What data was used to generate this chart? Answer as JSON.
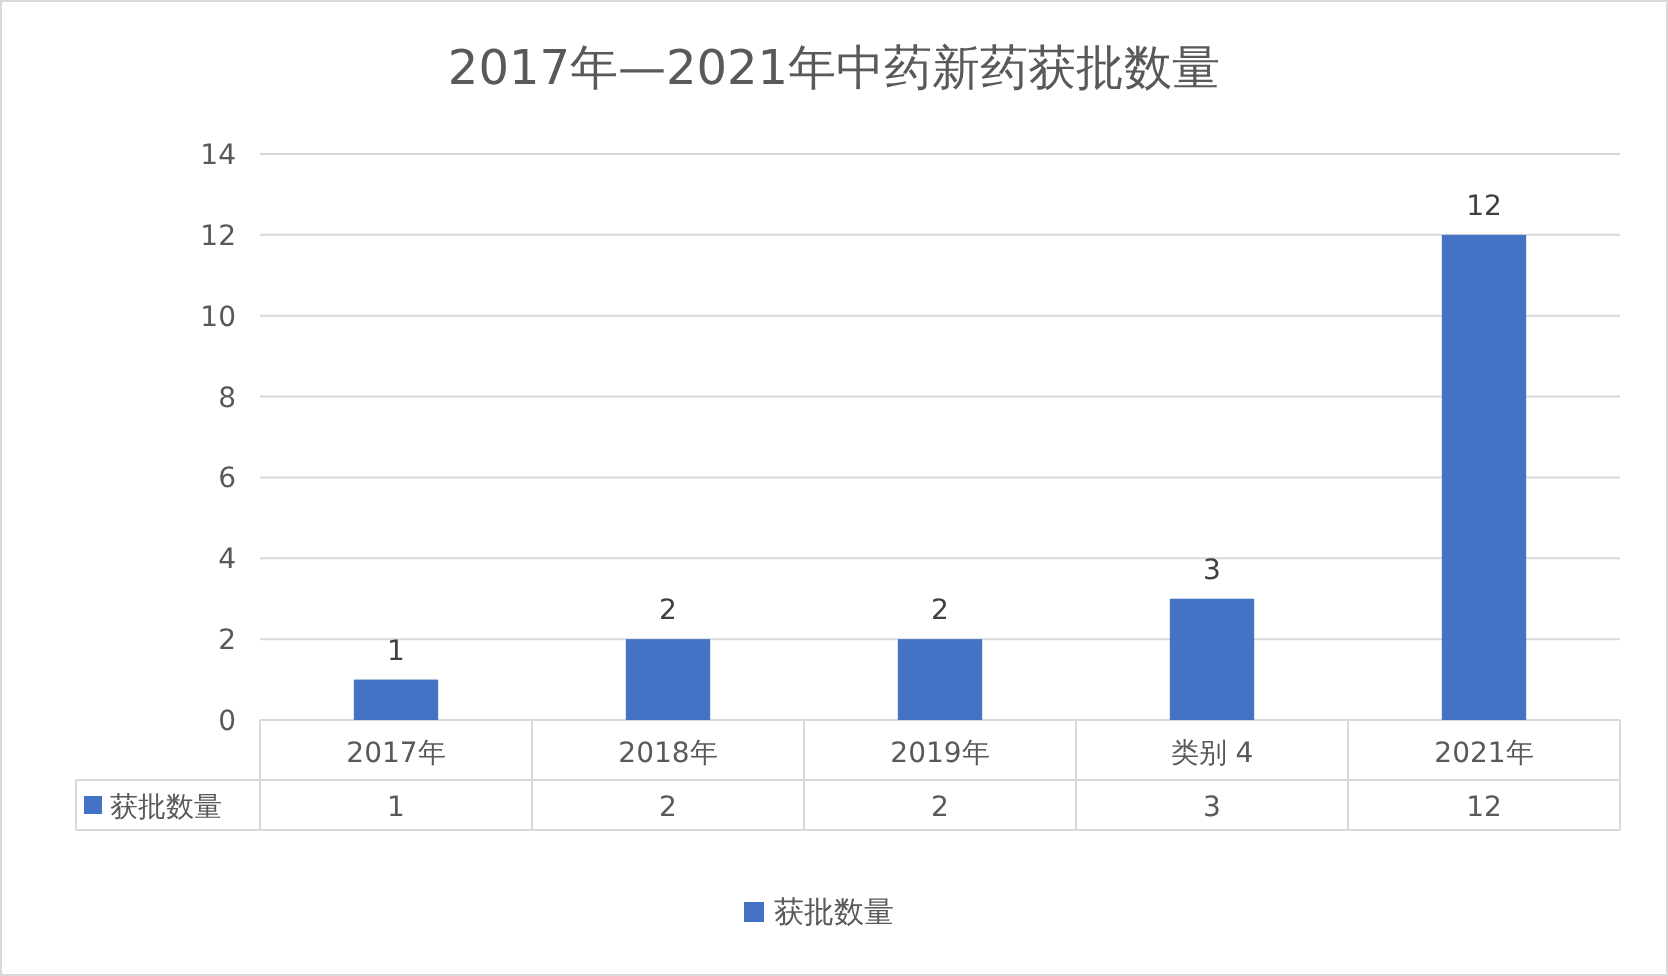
{
  "chart_data": {
    "type": "bar",
    "title": "2017年—2021年中药新药获批数量",
    "categories": [
      "2017年",
      "2018年",
      "2019年",
      "类别 4",
      "2021年"
    ],
    "series": [
      {
        "name": "获批数量",
        "color": "#4472c4",
        "values": [
          1,
          2,
          2,
          3,
          12
        ]
      }
    ],
    "annotations": [
      "1",
      "2",
      "2",
      "3",
      "12"
    ],
    "ylim": [
      0,
      14
    ],
    "yticks": [
      0,
      2,
      4,
      6,
      8,
      10,
      12,
      14
    ],
    "grid": "y",
    "data_labels": true,
    "legend": "bottom"
  }
}
